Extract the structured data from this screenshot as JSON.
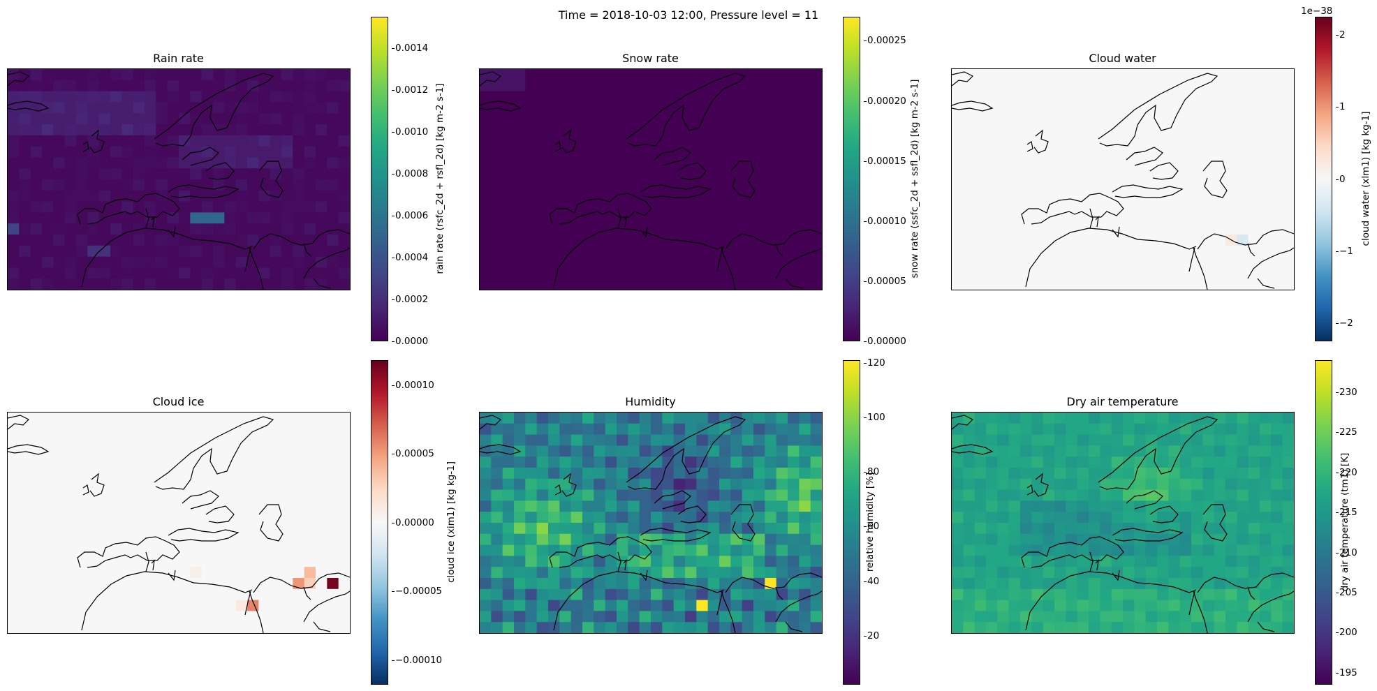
{
  "figure": {
    "suptitle": "Time = 2018-10-03 12:00, Pressure level = 11"
  },
  "chart_data": [
    {
      "type": "heatmap",
      "title": "Rain rate",
      "colorbar_label": "rain rate (rsfc_2d + rsfl_2d) [kg m-2 s-1]",
      "colormap": "viridis",
      "vmin": 0.0,
      "vmax": 0.00155,
      "ticks": [
        0.0,
        0.0002,
        0.0004,
        0.0006,
        0.0008,
        0.001,
        0.0012,
        0.0014
      ],
      "tick_labels": [
        "0.0000",
        "0.0002",
        "0.0004",
        "0.0006",
        "0.0008",
        "0.0010",
        "0.0012",
        "0.0014"
      ],
      "extent_lon": [
        -25,
        65
      ],
      "extent_lat": [
        15,
        75
      ]
    },
    {
      "type": "heatmap",
      "title": "Snow rate",
      "colorbar_label": "snow rate (ssfc_2d + ssfl_2d) [kg m-2 s-1]",
      "colormap": "viridis",
      "vmin": 0.0,
      "vmax": 0.00027,
      "ticks": [
        0.0,
        5e-05,
        0.0001,
        0.00015,
        0.0002,
        0.00025
      ],
      "tick_labels": [
        "0.00000",
        "0.00005",
        "0.00010",
        "0.00015",
        "0.00020",
        "0.00025"
      ],
      "extent_lon": [
        -25,
        65
      ],
      "extent_lat": [
        15,
        75
      ]
    },
    {
      "type": "heatmap",
      "title": "Cloud water",
      "colorbar_label": "cloud water (xlm1) [kg kg-1]",
      "colormap": "RdBu_r",
      "vmin": -2.25e-38,
      "vmax": 2.25e-38,
      "offset_text": "1e−38",
      "ticks": [
        -2,
        -1,
        0,
        1,
        2
      ],
      "tick_labels": [
        "−2",
        "−1",
        "0",
        "1",
        "2"
      ],
      "tick_scale": 1e-38,
      "extent_lon": [
        -25,
        65
      ],
      "extent_lat": [
        15,
        75
      ]
    },
    {
      "type": "heatmap",
      "title": "Cloud ice",
      "colorbar_label": "cloud ice (xim1) [kg kg-1]",
      "colormap": "RdBu_r",
      "vmin": -0.000118,
      "vmax": 0.000118,
      "ticks": [
        -0.0001,
        -5e-05,
        0.0,
        5e-05,
        0.0001
      ],
      "tick_labels": [
        "−0.00010",
        "−0.00005",
        "0.00000",
        "0.00005",
        "0.00010"
      ],
      "extent_lon": [
        -25,
        65
      ],
      "extent_lat": [
        15,
        75
      ]
    },
    {
      "type": "heatmap",
      "title": "Humidity",
      "colorbar_label": "relative humidity [%]",
      "colormap": "viridis",
      "vmin": 2,
      "vmax": 121,
      "ticks": [
        20,
        40,
        60,
        80,
        100,
        120
      ],
      "tick_labels": [
        "20",
        "40",
        "60",
        "80",
        "100",
        "120"
      ],
      "extent_lon": [
        -25,
        65
      ],
      "extent_lat": [
        15,
        75
      ]
    },
    {
      "type": "heatmap",
      "title": "Dry air temperature",
      "colorbar_label": "dry air temperature (tm1) [K]",
      "colormap": "viridis",
      "vmin": 193.5,
      "vmax": 234,
      "ticks": [
        195,
        200,
        205,
        210,
        215,
        220,
        225,
        230
      ],
      "tick_labels": [
        "195",
        "200",
        "205",
        "210",
        "215",
        "220",
        "225",
        "230"
      ],
      "extent_lon": [
        -25,
        65
      ],
      "extent_lat": [
        15,
        75
      ]
    }
  ]
}
